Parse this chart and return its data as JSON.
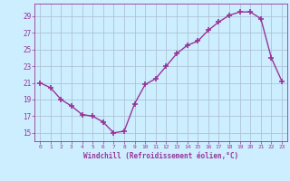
{
  "x": [
    0,
    1,
    2,
    3,
    4,
    5,
    6,
    7,
    8,
    9,
    10,
    11,
    12,
    13,
    14,
    15,
    16,
    17,
    18,
    19,
    20,
    21,
    22,
    23
  ],
  "y": [
    21.0,
    20.4,
    19.0,
    18.2,
    17.2,
    17.0,
    16.3,
    15.0,
    15.2,
    18.5,
    20.8,
    21.5,
    23.0,
    24.5,
    25.5,
    26.0,
    27.3,
    28.3,
    29.1,
    29.5,
    29.5,
    28.7,
    24.0,
    21.2
  ],
  "line_color": "#993399",
  "marker": "+",
  "marker_size": 4,
  "marker_lw": 1.2,
  "line_width": 1.0,
  "bg_color": "#cceeff",
  "grid_color": "#aabbcc",
  "xlabel": "Windchill (Refroidissement éolien,°C)",
  "yticks": [
    15,
    17,
    19,
    21,
    23,
    25,
    27,
    29
  ],
  "ylim": [
    14.0,
    30.5
  ],
  "xlim": [
    -0.5,
    23.5
  ]
}
